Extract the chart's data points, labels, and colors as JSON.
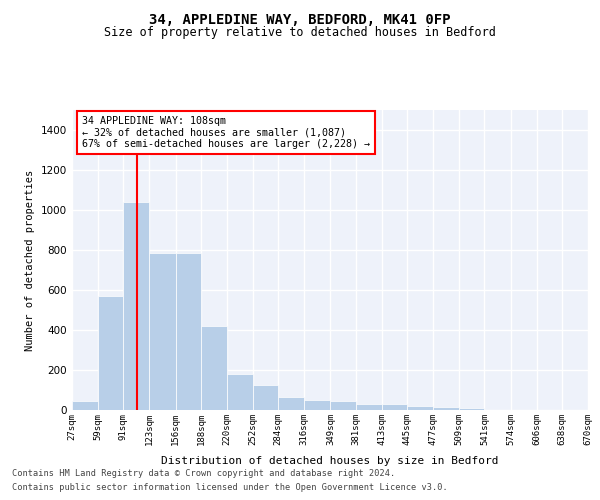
{
  "title": "34, APPLEDINE WAY, BEDFORD, MK41 0FP",
  "subtitle": "Size of property relative to detached houses in Bedford",
  "xlabel": "Distribution of detached houses by size in Bedford",
  "ylabel": "Number of detached properties",
  "bar_color": "#b8cfe8",
  "background_color": "#eef2fa",
  "grid_color": "#ffffff",
  "vline_x": 108,
  "vline_color": "red",
  "annotation_text": "34 APPLEDINE WAY: 108sqm\n← 32% of detached houses are smaller (1,087)\n67% of semi-detached houses are larger (2,228) →",
  "footnote1": "Contains HM Land Registry data © Crown copyright and database right 2024.",
  "footnote2": "Contains public sector information licensed under the Open Government Licence v3.0.",
  "bin_edges": [
    27,
    59,
    91,
    123,
    156,
    188,
    220,
    252,
    284,
    316,
    349,
    381,
    413,
    445,
    477,
    509,
    541,
    574,
    606,
    638,
    670
  ],
  "bar_heights": [
    45,
    572,
    1040,
    787,
    787,
    422,
    178,
    127,
    65,
    52,
    47,
    30,
    28,
    20,
    15,
    10,
    0,
    0,
    0,
    0
  ],
  "ylim": [
    0,
    1500
  ],
  "yticks": [
    0,
    200,
    400,
    600,
    800,
    1000,
    1200,
    1400
  ]
}
